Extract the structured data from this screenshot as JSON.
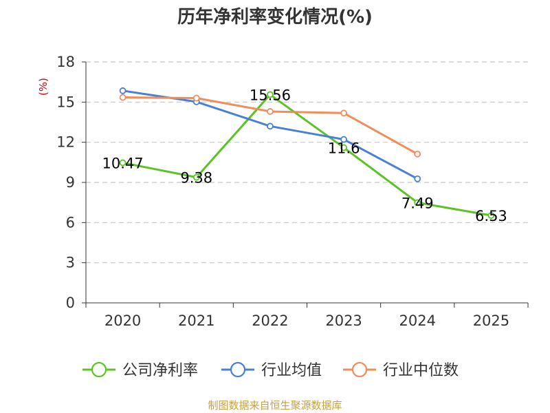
{
  "chart_data": {
    "type": "line",
    "title": "历年净利率变化情况(%)",
    "ylabel": "(%)",
    "xlabel": "",
    "ylim": [
      0,
      18
    ],
    "yticks": [
      0,
      3,
      6,
      9,
      12,
      15,
      18
    ],
    "categories": [
      "2020",
      "2021",
      "2022",
      "2023",
      "2024",
      "2025"
    ],
    "grid": true,
    "legend_position": "bottom",
    "series": [
      {
        "name": "公司净利率",
        "color": "#5bc424",
        "values": [
          10.47,
          9.38,
          15.56,
          11.6,
          7.49,
          6.53
        ],
        "labels": [
          "10.47",
          "9.38",
          "15.56",
          "11.6",
          "7.49",
          "6.53"
        ],
        "show_labels": true
      },
      {
        "name": "行业均值",
        "color": "#4a7fd8",
        "values": [
          15.85,
          15.02,
          13.2,
          12.21,
          9.27,
          null
        ],
        "show_labels": false
      },
      {
        "name": "行业中位数",
        "color": "#f28c59",
        "values": [
          15.35,
          15.3,
          14.3,
          14.18,
          11.12,
          null
        ],
        "show_labels": false
      }
    ],
    "source": "制图数据来自恒生聚源数据库"
  }
}
